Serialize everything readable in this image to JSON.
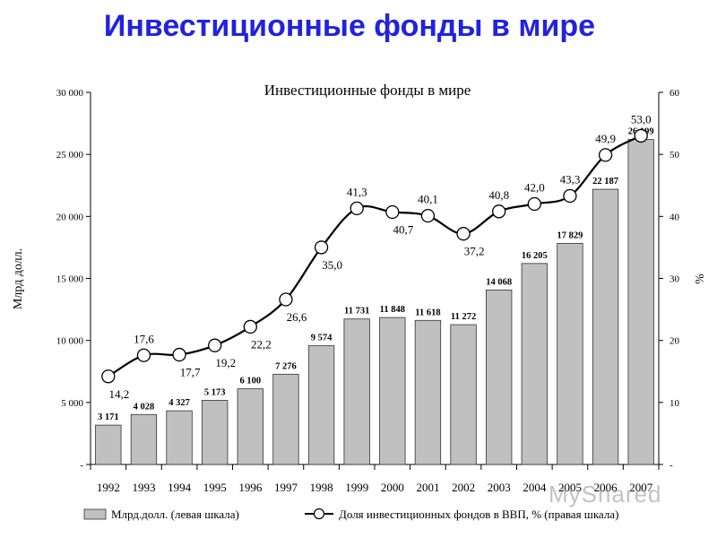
{
  "slide": {
    "title": "Инвестиционные фонды в мире"
  },
  "watermark": "MyShared",
  "chart_data": {
    "type": "bar",
    "title": "Инвестиционные фонды в мире",
    "ylabel": "Млрд долл.",
    "y2label": "%",
    "ylim": [
      0,
      30000
    ],
    "y2lim": [
      0,
      60
    ],
    "y_ticks": [
      "-",
      "5 000",
      "10 000",
      "15 000",
      "20 000",
      "25 000",
      "30 000"
    ],
    "y2_ticks": [
      "-",
      "10",
      "20",
      "30",
      "40",
      "50",
      "60"
    ],
    "categories": [
      "1992",
      "1993",
      "1994",
      "1995",
      "1996",
      "1997",
      "1998",
      "1999",
      "2000",
      "2001",
      "2002",
      "2003",
      "2004",
      "2005",
      "2006",
      "2007"
    ],
    "series": [
      {
        "name": "Млрд.долл. (левая шкала)",
        "type": "bar",
        "axis": "left",
        "values": [
          3171,
          4028,
          4327,
          5173,
          6100,
          7276,
          9574,
          11731,
          11848,
          11618,
          11272,
          14068,
          16205,
          17829,
          22187,
          26199
        ],
        "labels": [
          "3 171",
          "4 028",
          "4 327",
          "5 173",
          "6 100",
          "7 276",
          "9 574",
          "11 731",
          "11 848",
          "11 618",
          "11 272",
          "14 068",
          "16 205",
          "17 829",
          "22 187",
          "26 199"
        ]
      },
      {
        "name": "Доля инвестиционных фондов в ВВП, % (правая шкала)",
        "type": "line",
        "axis": "right",
        "values": [
          14.2,
          17.6,
          17.7,
          19.2,
          22.2,
          26.6,
          35.0,
          41.3,
          40.7,
          40.1,
          37.2,
          40.8,
          42.0,
          43.3,
          49.9,
          53.0
        ],
        "labels": [
          "14,2",
          "17,6",
          "17,7",
          "19,2",
          "22,2",
          "26,6",
          "35,0",
          "41,3",
          "40,7",
          "40,1",
          "37,2",
          "40,8",
          "42,0",
          "43,3",
          "49,9",
          "53,0"
        ]
      }
    ],
    "legend_position": "bottom",
    "colors": {
      "bar_fill": "#c0c0c0",
      "bar_stroke": "#333333",
      "line": "#000000",
      "marker_fill": "#ffffff",
      "title": "#2222e0"
    }
  }
}
